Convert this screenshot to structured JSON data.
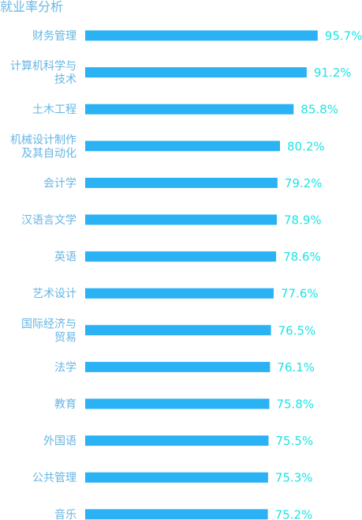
{
  "chart_data": {
    "type": "bar",
    "orientation": "horizontal",
    "title": "就业率分析",
    "categories": [
      [
        "财务管理"
      ],
      [
        "计算机科学与",
        "技术"
      ],
      [
        "土木工程"
      ],
      [
        "机械设计制作",
        "及其自动化"
      ],
      [
        "会计学"
      ],
      [
        "汉语言文学"
      ],
      [
        "英语"
      ],
      [
        "艺术设计"
      ],
      [
        "国际经济与",
        "贸易"
      ],
      [
        "法学"
      ],
      [
        "教育"
      ],
      [
        "外国语"
      ],
      [
        "公共管理"
      ],
      [
        "音乐"
      ]
    ],
    "values": [
      95.7,
      91.2,
      85.8,
      80.2,
      79.2,
      78.9,
      78.6,
      77.6,
      76.5,
      76.1,
      75.8,
      75.5,
      75.3,
      75.2
    ],
    "value_labels": [
      "95.7%",
      "91.2%",
      "85.8%",
      "80.2%",
      "79.2%",
      "78.9%",
      "78.6%",
      "77.6%",
      "76.5%",
      "76.1%",
      "75.8%",
      "75.5%",
      "75.3%",
      "75.2%"
    ],
    "xlim": [
      0,
      100
    ],
    "grid": false,
    "legend": "none",
    "colors": {
      "bar": "#2bb2f5",
      "category_label": "#66b6e3",
      "value_label": "#1fe3e3",
      "title": "#66b6e3"
    }
  }
}
